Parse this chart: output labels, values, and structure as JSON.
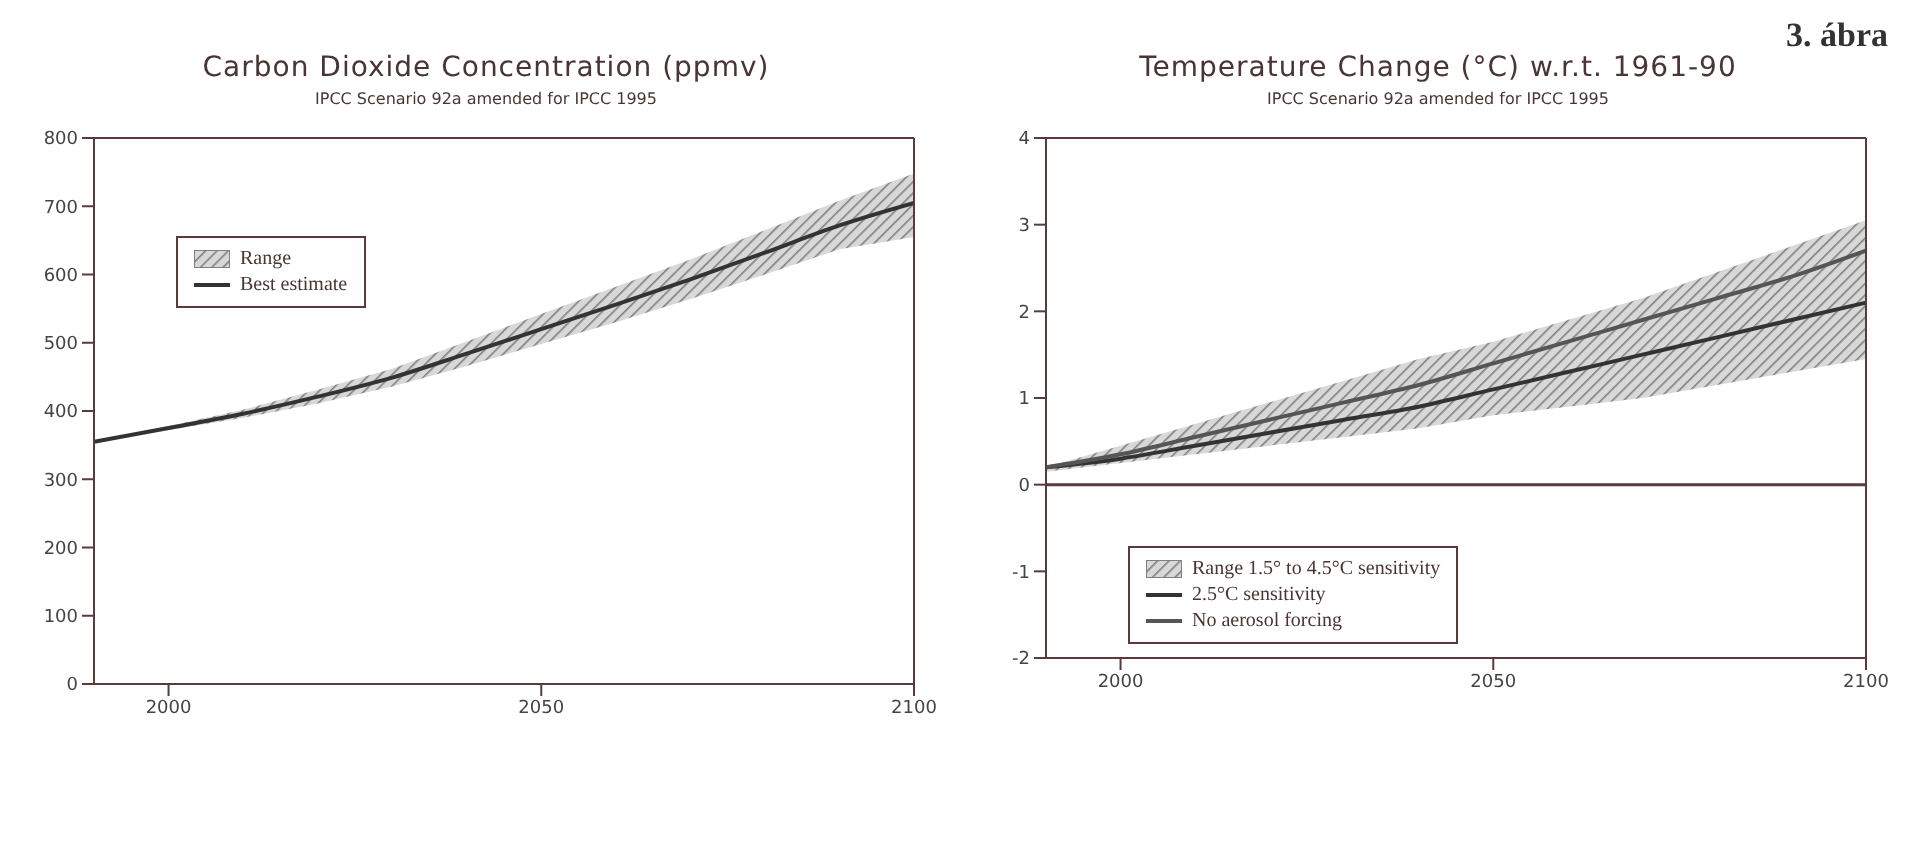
{
  "chart_data": [
    {
      "type": "line",
      "title": "Carbon Dioxide Concentration (ppmv)",
      "subtitle": "IPCC Scenario 92a amended for IPCC 1995",
      "legend_title": "Range",
      "x": [
        1990,
        2000,
        2010,
        2020,
        2030,
        2040,
        2050,
        2060,
        2070,
        2080,
        2090,
        2100
      ],
      "xlim": [
        1990,
        2100
      ],
      "xticks": [
        2000,
        2050,
        2100
      ],
      "ylim": [
        0,
        800
      ],
      "yticks": [
        0,
        100,
        200,
        300,
        400,
        500,
        600,
        700,
        800
      ],
      "legend": "top left",
      "grid": false,
      "marker": "none",
      "line_style": "solid",
      "series": [
        {
          "name": "Best estimate",
          "color": "#333333",
          "values": [
            355,
            375,
            396,
            421,
            449,
            484,
            520,
            556,
            593,
            632,
            672,
            705
          ],
          "lower": [
            355,
            372,
            390,
            411,
            436,
            466,
            498,
            530,
            564,
            600,
            637,
            655
          ],
          "upper": [
            355,
            378,
            402,
            431,
            462,
            502,
            542,
            582,
            622,
            665,
            708,
            748
          ]
        }
      ]
    },
    {
      "type": "line",
      "title": "Temperature Change (°C) w.r.t. 1961-90",
      "subtitle": "IPCC Scenario 92a amended for IPCC 1995",
      "legend_title": "Range 1.5° to 4.5°C sensitivity",
      "annotations": [
        "3. ábra"
      ],
      "x": [
        1990,
        2000,
        2010,
        2020,
        2030,
        2040,
        2050,
        2060,
        2070,
        2080,
        2090,
        2100
      ],
      "xlim": [
        1990,
        2100
      ],
      "xticks": [
        2000,
        2050,
        2100
      ],
      "ylim": [
        -2,
        4
      ],
      "yticks": [
        -2,
        -1,
        0,
        1,
        2,
        3,
        4
      ],
      "legend": "bottom left",
      "grid": false,
      "marker": "none",
      "line_style": "solid",
      "ref_lines": [
        {
          "axis": "y",
          "value": 0,
          "color": "#5a3a3a"
        }
      ],
      "series": [
        {
          "name": "2.5°C sensitivity",
          "color": "#333333",
          "values": [
            0.2,
            0.3,
            0.45,
            0.6,
            0.75,
            0.9,
            1.1,
            1.3,
            1.5,
            1.7,
            1.9,
            2.1
          ],
          "lower": [
            0.15,
            0.25,
            0.35,
            0.45,
            0.55,
            0.65,
            0.8,
            0.9,
            1.0,
            1.15,
            1.3,
            1.45
          ],
          "upper": [
            0.2,
            0.45,
            0.7,
            0.95,
            1.2,
            1.45,
            1.65,
            1.9,
            2.15,
            2.45,
            2.75,
            3.05
          ]
        },
        {
          "name": "No aerosol forcing",
          "color": "#555555",
          "values": [
            0.2,
            0.35,
            0.55,
            0.75,
            0.95,
            1.15,
            1.4,
            1.65,
            1.9,
            2.15,
            2.4,
            2.7
          ]
        }
      ]
    }
  ]
}
